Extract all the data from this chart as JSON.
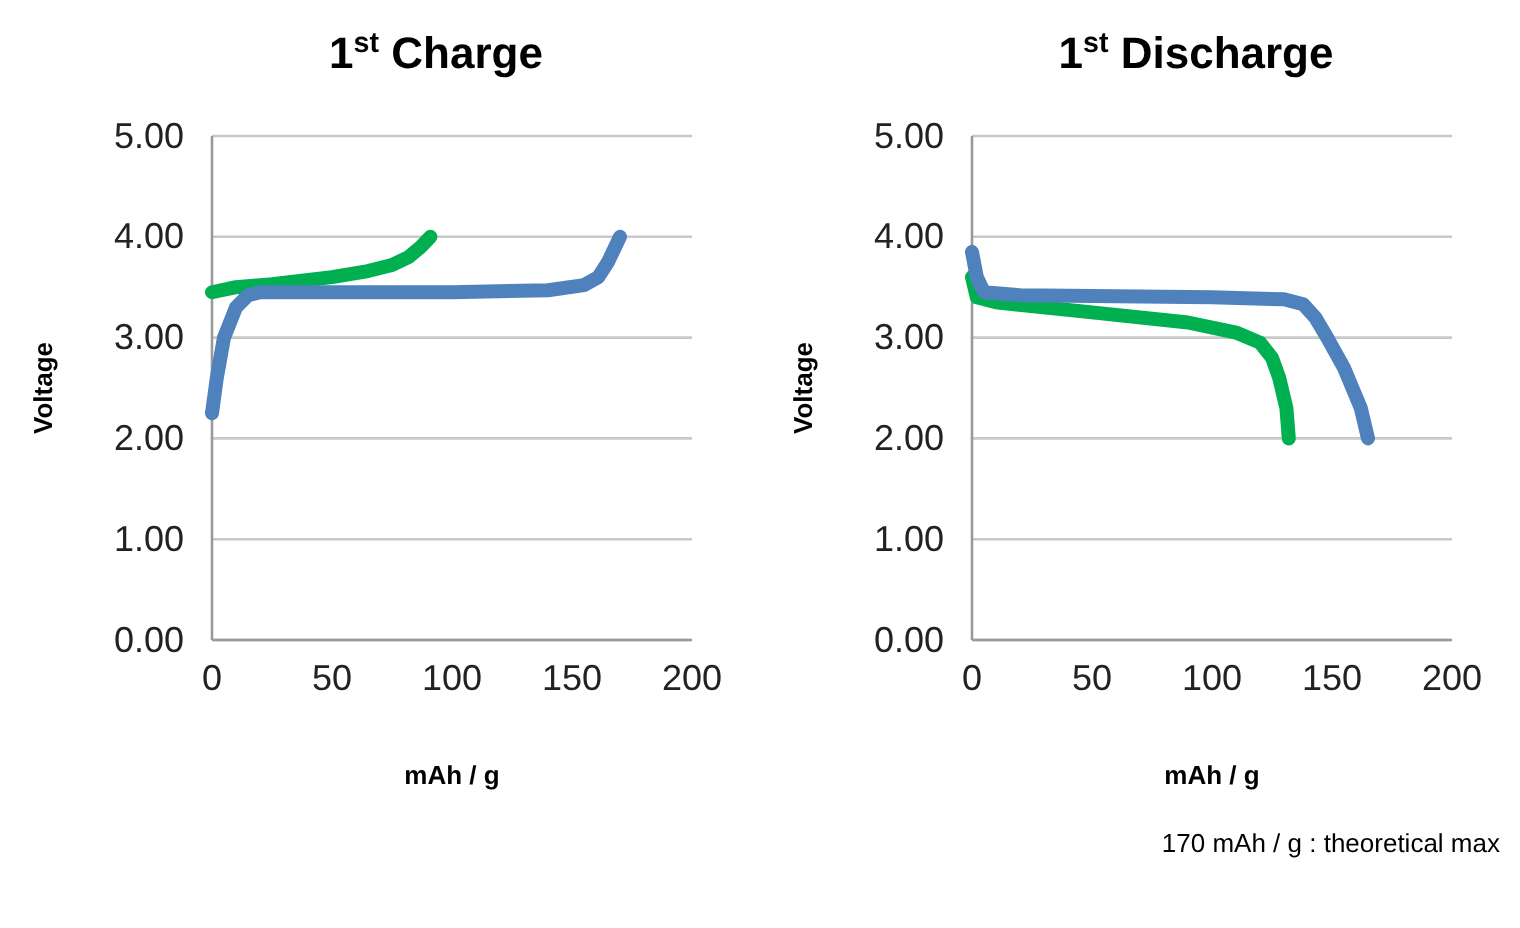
{
  "chart_data": [
    {
      "type": "line",
      "title": "1$^{st}$ Charge",
      "xlabel": "mAh / g",
      "ylabel": "Voltage",
      "xlim": [
        0,
        200
      ],
      "xticks": [
        0,
        50,
        100,
        150,
        200
      ],
      "ylim": [
        0,
        5
      ],
      "yticks": [
        {
          "value": 0,
          "label": "0.00"
        },
        {
          "value": 1,
          "label": "1.00"
        },
        {
          "value": 2,
          "label": "2.00"
        },
        {
          "value": 3,
          "label": "3.00"
        },
        {
          "value": 4,
          "label": "4.00"
        },
        {
          "value": 5,
          "label": "5.00"
        }
      ],
      "grid": "y",
      "marker": "none",
      "line_style": "solid",
      "series": [
        {
          "color": "#00b050",
          "x": [
            0,
            10,
            25,
            50,
            65,
            75,
            82,
            87,
            91
          ],
          "values": [
            3.45,
            3.5,
            3.53,
            3.6,
            3.66,
            3.72,
            3.8,
            3.9,
            4.0
          ]
        },
        {
          "color": "#4f81bd",
          "x": [
            0,
            2,
            5,
            10,
            15,
            20,
            50,
            100,
            140,
            155,
            161,
            165,
            170
          ],
          "values": [
            2.25,
            2.6,
            3.0,
            3.3,
            3.42,
            3.45,
            3.45,
            3.45,
            3.47,
            3.52,
            3.6,
            3.75,
            4.0
          ]
        }
      ]
    },
    {
      "type": "line",
      "title": "1$^{st}$ Discharge",
      "xlabel": "mAh / g",
      "ylabel": "Voltage",
      "xlim": [
        0,
        200
      ],
      "xticks": [
        0,
        50,
        100,
        150,
        200
      ],
      "ylim": [
        0,
        5
      ],
      "yticks": [
        {
          "value": 0,
          "label": "0.00"
        },
        {
          "value": 1,
          "label": "1.00"
        },
        {
          "value": 2,
          "label": "2.00"
        },
        {
          "value": 3,
          "label": "3.00"
        },
        {
          "value": 4,
          "label": "4.00"
        },
        {
          "value": 5,
          "label": "5.00"
        }
      ],
      "grid": "y",
      "marker": "none",
      "line_style": "solid",
      "annotations": [
        "170 mAh / g : theoretical max"
      ],
      "series": [
        {
          "color": "#00b050",
          "x": [
            0,
            2,
            10,
            50,
            90,
            110,
            120,
            125,
            128,
            131,
            132
          ],
          "values": [
            3.6,
            3.4,
            3.35,
            3.25,
            3.15,
            3.05,
            2.95,
            2.8,
            2.6,
            2.3,
            2.0
          ]
        },
        {
          "color": "#4f81bd",
          "x": [
            0,
            2,
            5,
            20,
            100,
            130,
            138,
            143,
            148,
            155,
            162,
            165
          ],
          "values": [
            3.85,
            3.6,
            3.45,
            3.42,
            3.4,
            3.38,
            3.33,
            3.2,
            3.0,
            2.7,
            2.3,
            2.0
          ]
        }
      ]
    }
  ]
}
